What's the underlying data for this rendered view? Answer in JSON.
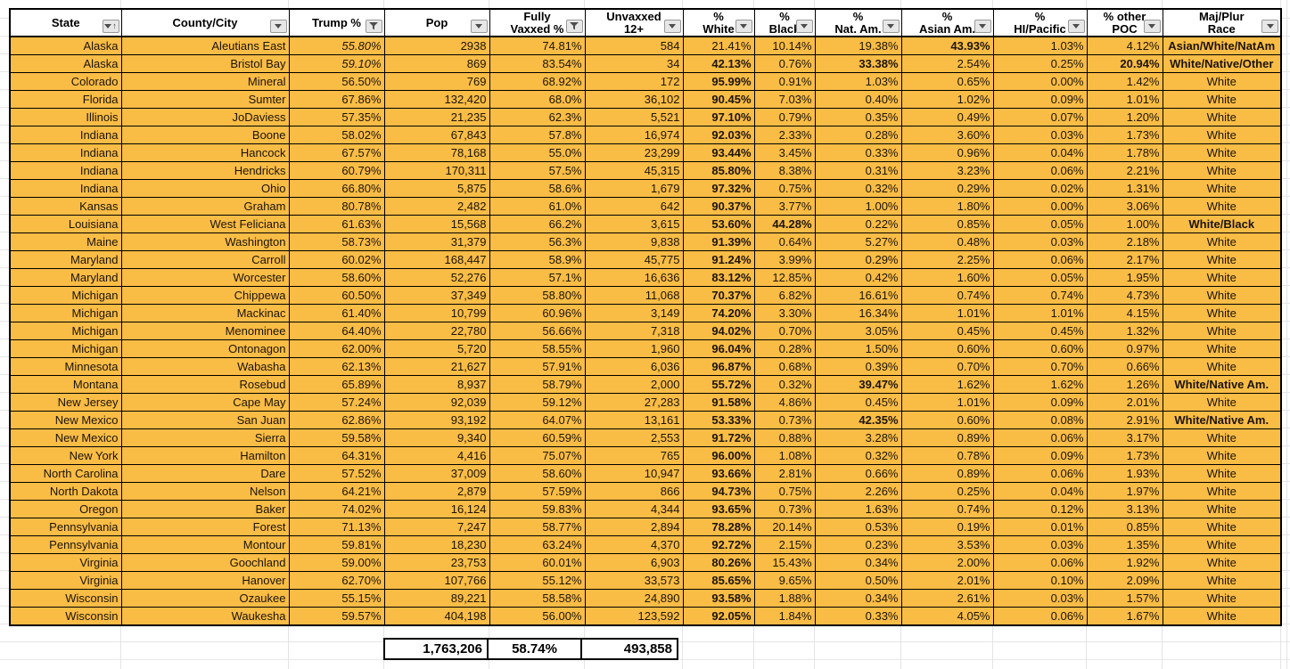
{
  "colors": {
    "row_fill": "#f9bc45",
    "table_border": "#000000",
    "grid_line": "#e4e4e4",
    "header_bg": "#ffffff"
  },
  "table": {
    "columns": [
      {
        "key": "state",
        "label": "State",
        "icon": "sort-asc-filter"
      },
      {
        "key": "county",
        "label": "County/City",
        "icon": "dropdown"
      },
      {
        "key": "trump_pct",
        "label": "Trump %",
        "icon": "filter"
      },
      {
        "key": "pop",
        "label": "Pop",
        "icon": "dropdown"
      },
      {
        "key": "fully_vaxxed_pct",
        "label": "Fully\nVaxxed %",
        "icon": "filter"
      },
      {
        "key": "unvaxxed_12plus",
        "label": "Unvaxxed\n12+",
        "icon": "dropdown"
      },
      {
        "key": "pct_white",
        "label": "%\nWhite",
        "icon": "dropdown"
      },
      {
        "key": "pct_black",
        "label": "%\nBlack",
        "icon": "dropdown"
      },
      {
        "key": "pct_nat_am",
        "label": "%\nNat. Am.",
        "icon": "dropdown"
      },
      {
        "key": "pct_asian_am",
        "label": "%\nAsian Am.",
        "icon": "dropdown"
      },
      {
        "key": "pct_hi_pacific",
        "label": "%\nHI/Pacific",
        "icon": "dropdown"
      },
      {
        "key": "pct_other_poc",
        "label": "% other\nPOC",
        "icon": "dropdown"
      },
      {
        "key": "maj_plur_race",
        "label": "Maj/Plur\nRace",
        "icon": "dropdown"
      }
    ],
    "rows": [
      [
        "Alaska",
        "Aleutians East",
        {
          "t": "55.80%",
          "i": true
        },
        "2938",
        "74.81%",
        "584",
        "21.41%",
        "10.14%",
        "19.38%",
        {
          "t": "43.93%",
          "b": true
        },
        "1.03%",
        "4.12%",
        {
          "t": "Asian/White/NatAm",
          "b": true
        }
      ],
      [
        "Alaska",
        "Bristol Bay",
        {
          "t": "59.10%",
          "i": true
        },
        "869",
        "83.54%",
        "34",
        {
          "t": "42.13%",
          "b": true
        },
        "0.76%",
        {
          "t": "33.38%",
          "b": true
        },
        "2.54%",
        "0.25%",
        {
          "t": "20.94%",
          "b": true
        },
        {
          "t": "White/Native/Other",
          "b": true
        }
      ],
      [
        "Colorado",
        "Mineral",
        "56.50%",
        "769",
        "68.92%",
        "172",
        {
          "t": "95.99%",
          "b": true
        },
        "0.91%",
        "1.03%",
        "0.65%",
        "0.00%",
        "1.42%",
        "White"
      ],
      [
        "Florida",
        "Sumter",
        "67.86%",
        "132,420",
        "68.0%",
        "36,102",
        {
          "t": "90.45%",
          "b": true
        },
        "7.03%",
        "0.40%",
        "1.02%",
        "0.09%",
        "1.01%",
        "White"
      ],
      [
        "Illinois",
        "JoDaviess",
        "57.35%",
        "21,235",
        "62.3%",
        "5,521",
        {
          "t": "97.10%",
          "b": true
        },
        "0.79%",
        "0.35%",
        "0.49%",
        "0.07%",
        "1.20%",
        "White"
      ],
      [
        "Indiana",
        "Boone",
        "58.02%",
        "67,843",
        "57.8%",
        "16,974",
        {
          "t": "92.03%",
          "b": true
        },
        "2.33%",
        "0.28%",
        "3.60%",
        "0.03%",
        "1.73%",
        "White"
      ],
      [
        "Indiana",
        "Hancock",
        "67.57%",
        "78,168",
        "55.0%",
        "23,299",
        {
          "t": "93.44%",
          "b": true
        },
        "3.45%",
        "0.33%",
        "0.96%",
        "0.04%",
        "1.78%",
        "White"
      ],
      [
        "Indiana",
        "Hendricks",
        "60.79%",
        "170,311",
        "57.5%",
        "45,315",
        {
          "t": "85.80%",
          "b": true
        },
        "8.38%",
        "0.31%",
        "3.23%",
        "0.06%",
        "2.21%",
        "White"
      ],
      [
        "Indiana",
        "Ohio",
        "66.80%",
        "5,875",
        "58.6%",
        "1,679",
        {
          "t": "97.32%",
          "b": true
        },
        "0.75%",
        "0.32%",
        "0.29%",
        "0.02%",
        "1.31%",
        "White"
      ],
      [
        "Kansas",
        "Graham",
        "80.78%",
        "2,482",
        "61.0%",
        "642",
        {
          "t": "90.37%",
          "b": true
        },
        "3.77%",
        "1.00%",
        "1.80%",
        "0.00%",
        "3.06%",
        "White"
      ],
      [
        "Louisiana",
        "West Feliciana",
        "61.63%",
        "15,568",
        "66.2%",
        "3,615",
        {
          "t": "53.60%",
          "b": true
        },
        {
          "t": "44.28%",
          "b": true
        },
        "0.22%",
        "0.85%",
        "0.05%",
        "1.00%",
        {
          "t": "White/Black",
          "b": true
        }
      ],
      [
        "Maine",
        "Washington",
        "58.73%",
        "31,379",
        "56.3%",
        "9,838",
        {
          "t": "91.39%",
          "b": true
        },
        "0.64%",
        "5.27%",
        "0.48%",
        "0.03%",
        "2.18%",
        "White"
      ],
      [
        "Maryland",
        "Carroll",
        "60.02%",
        "168,447",
        "58.9%",
        "45,775",
        {
          "t": "91.24%",
          "b": true
        },
        "3.99%",
        "0.29%",
        "2.25%",
        "0.06%",
        "2.17%",
        "White"
      ],
      [
        "Maryland",
        "Worcester",
        "58.60%",
        "52,276",
        "57.1%",
        "16,636",
        {
          "t": "83.12%",
          "b": true
        },
        "12.85%",
        "0.42%",
        "1.60%",
        "0.05%",
        "1.95%",
        "White"
      ],
      [
        "Michigan",
        "Chippewa",
        "60.50%",
        "37,349",
        "58.80%",
        "11,068",
        {
          "t": "70.37%",
          "b": true
        },
        "6.82%",
        "16.61%",
        "0.74%",
        "0.74%",
        "4.73%",
        "White"
      ],
      [
        "Michigan",
        "Mackinac",
        "61.40%",
        "10,799",
        "60.96%",
        "3,149",
        {
          "t": "74.20%",
          "b": true
        },
        "3.30%",
        "16.34%",
        "1.01%",
        "1.01%",
        "4.15%",
        "White"
      ],
      [
        "Michigan",
        "Menominee",
        "64.40%",
        "22,780",
        "56.66%",
        "7,318",
        {
          "t": "94.02%",
          "b": true
        },
        "0.70%",
        "3.05%",
        "0.45%",
        "0.45%",
        "1.32%",
        "White"
      ],
      [
        "Michigan",
        "Ontonagon",
        "62.00%",
        "5,720",
        "58.55%",
        "1,960",
        {
          "t": "96.04%",
          "b": true
        },
        "0.28%",
        "1.50%",
        "0.60%",
        "0.60%",
        "0.97%",
        "White"
      ],
      [
        "Minnesota",
        "Wabasha",
        "62.13%",
        "21,627",
        "57.91%",
        "6,036",
        {
          "t": "96.87%",
          "b": true
        },
        "0.68%",
        "0.39%",
        "0.70%",
        "0.70%",
        "0.66%",
        "White"
      ],
      [
        "Montana",
        "Rosebud",
        "65.89%",
        "8,937",
        "58.79%",
        "2,000",
        {
          "t": "55.72%",
          "b": true
        },
        "0.32%",
        {
          "t": "39.47%",
          "b": true
        },
        "1.62%",
        "1.62%",
        "1.26%",
        {
          "t": "White/Native Am.",
          "b": true
        }
      ],
      [
        "New Jersey",
        "Cape May",
        "57.24%",
        "92,039",
        "59.12%",
        "27,283",
        {
          "t": "91.58%",
          "b": true
        },
        "4.86%",
        "0.45%",
        "1.01%",
        "0.09%",
        "2.01%",
        "White"
      ],
      [
        "New Mexico",
        "San Juan",
        "62.86%",
        "93,192",
        "64.07%",
        "13,161",
        {
          "t": "53.33%",
          "b": true
        },
        "0.73%",
        {
          "t": "42.35%",
          "b": true
        },
        "0.60%",
        "0.08%",
        "2.91%",
        {
          "t": "White/Native Am.",
          "b": true
        }
      ],
      [
        "New Mexico",
        "Sierra",
        "59.58%",
        "9,340",
        "60.59%",
        "2,553",
        {
          "t": "91.72%",
          "b": true
        },
        "0.88%",
        "3.28%",
        "0.89%",
        "0.06%",
        "3.17%",
        "White"
      ],
      [
        "New York",
        "Hamilton",
        "64.31%",
        "4,416",
        "75.07%",
        "765",
        {
          "t": "96.00%",
          "b": true
        },
        "1.08%",
        "0.32%",
        "0.78%",
        "0.09%",
        "1.73%",
        "White"
      ],
      [
        "North Carolina",
        "Dare",
        "57.52%",
        "37,009",
        "58.60%",
        "10,947",
        {
          "t": "93.66%",
          "b": true
        },
        "2.81%",
        "0.66%",
        "0.89%",
        "0.06%",
        "1.93%",
        "White"
      ],
      [
        "North Dakota",
        "Nelson",
        "64.21%",
        "2,879",
        "57.59%",
        "866",
        {
          "t": "94.73%",
          "b": true
        },
        "0.75%",
        "2.26%",
        "0.25%",
        "0.04%",
        "1.97%",
        "White"
      ],
      [
        "Oregon",
        "Baker",
        "74.02%",
        "16,124",
        "59.83%",
        "4,344",
        {
          "t": "93.65%",
          "b": true
        },
        "0.73%",
        "1.63%",
        "0.74%",
        "0.12%",
        "3.13%",
        "White"
      ],
      [
        "Pennsylvania",
        "Forest",
        "71.13%",
        "7,247",
        "58.77%",
        "2,894",
        {
          "t": "78.28%",
          "b": true
        },
        "20.14%",
        "0.53%",
        "0.19%",
        "0.01%",
        "0.85%",
        "White"
      ],
      [
        "Pennsylvania",
        "Montour",
        "59.81%",
        "18,230",
        "63.24%",
        "4,370",
        {
          "t": "92.72%",
          "b": true
        },
        "2.15%",
        "0.23%",
        "3.53%",
        "0.03%",
        "1.35%",
        "White"
      ],
      [
        "Virginia",
        "Goochland",
        "59.00%",
        "23,753",
        "60.01%",
        "6,903",
        {
          "t": "80.26%",
          "b": true
        },
        "15.43%",
        "0.34%",
        "2.00%",
        "0.06%",
        "1.92%",
        "White"
      ],
      [
        "Virginia",
        "Hanover",
        "62.70%",
        "107,766",
        "55.12%",
        "33,573",
        {
          "t": "85.65%",
          "b": true
        },
        "9.65%",
        "0.50%",
        "2.01%",
        "0.10%",
        "2.09%",
        "White"
      ],
      [
        "Wisconsin",
        "Ozaukee",
        "55.15%",
        "89,221",
        "58.58%",
        "24,890",
        {
          "t": "93.58%",
          "b": true
        },
        "1.88%",
        "0.34%",
        "2.61%",
        "0.03%",
        "1.57%",
        "White"
      ],
      [
        "Wisconsin",
        "Waukesha",
        "59.57%",
        "404,198",
        "56.00%",
        "123,592",
        {
          "t": "92.05%",
          "b": true
        },
        "1.84%",
        "0.33%",
        "4.05%",
        "0.06%",
        "1.67%",
        "White"
      ]
    ],
    "totals": {
      "pop": "1,763,206",
      "fully_vaxxed_pct": "58.74%",
      "unvaxxed_12plus": "493,858"
    }
  }
}
